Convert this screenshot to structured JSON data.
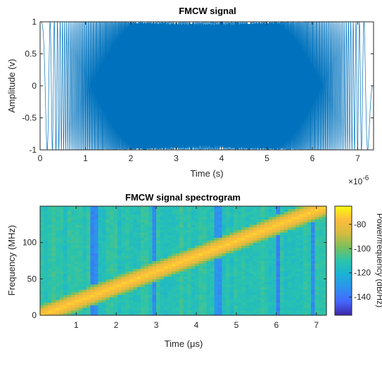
{
  "chart_data": [
    {
      "type": "line",
      "title": "FMCW signal",
      "xlabel": "Time (s)",
      "ylabel": "Amplitude (v)",
      "x_exponent_label": "×10",
      "x_exponent": "-6",
      "xlim": [
        0,
        7.35
      ],
      "ylim": [
        -1,
        1
      ],
      "x_ticks": [
        0,
        1,
        2,
        3,
        4,
        5,
        6,
        7
      ],
      "x_tick_labels": [
        "0",
        "1",
        "2",
        "3",
        "4",
        "5",
        "6",
        "7"
      ],
      "y_ticks": [
        -1,
        -0.5,
        0,
        0.5,
        1
      ],
      "y_tick_labels": [
        "-1",
        "-0.5",
        "0",
        "0.5",
        "1"
      ],
      "series": [
        {
          "color": "#0072bd",
          "signal": "triangular frequency sweep 0 → 150 MHz → 0",
          "sweep_time_us": 7.33,
          "max_frequency_mhz": 150
        }
      ],
      "grid": false,
      "legend": "none"
    },
    {
      "type": "heatmap",
      "title": "FMCW signal spectrogram",
      "xlabel": "Time (μs)",
      "ylabel": "Frequency (MHz)",
      "xlim": [
        0.1,
        7.25
      ],
      "ylim": [
        0,
        150
      ],
      "x_ticks": [
        1,
        2,
        3,
        4,
        5,
        6,
        7
      ],
      "x_tick_labels": [
        "1",
        "2",
        "3",
        "4",
        "5",
        "6",
        "7"
      ],
      "y_ticks": [
        0,
        50,
        100
      ],
      "y_tick_labels": [
        "0",
        "50",
        "100"
      ],
      "ridge": {
        "start": [
          0.1,
          0
        ],
        "end": [
          7.25,
          150
        ],
        "peak_db": -72
      },
      "background_db": -112,
      "dark_columns_us": [
        1.45,
        2.95,
        4.55,
        6.05,
        6.9
      ],
      "colorbar": {
        "label": "Power/frequency (dB/Hz)",
        "range": [
          -155,
          -65
        ],
        "ticks": [
          -80,
          -100,
          -120,
          -140
        ],
        "tick_labels": [
          "-80",
          "-100",
          "-120",
          "-140"
        ],
        "colormap": [
          "#3e26a8",
          "#4367fd",
          "#2f91ee",
          "#1ab2d5",
          "#2cc4aa",
          "#7abf5d",
          "#d6bb3f",
          "#fdbd3d",
          "#f9fb0e"
        ]
      },
      "legend": "none"
    }
  ]
}
